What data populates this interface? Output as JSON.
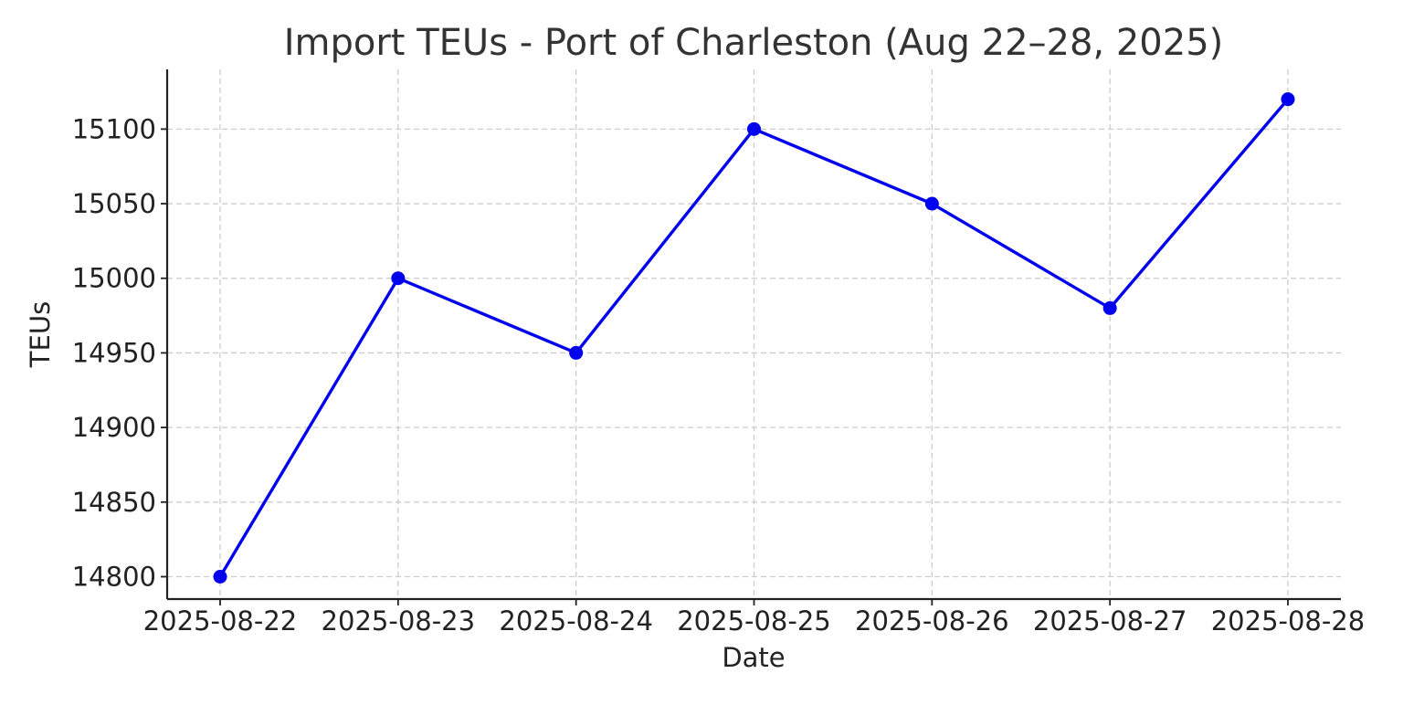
{
  "chart_data": {
    "type": "line",
    "title": "Import TEUs - Port of Charleston (Aug 22–28, 2025)",
    "xlabel": "Date",
    "ylabel": "TEUs",
    "categories": [
      "2025-08-22",
      "2025-08-23",
      "2025-08-24",
      "2025-08-25",
      "2025-08-26",
      "2025-08-27",
      "2025-08-28"
    ],
    "series": [
      {
        "values": [
          14800,
          15000,
          14950,
          15100,
          15050,
          14980,
          15120
        ],
        "color": "#0000ee"
      }
    ],
    "ylim": [
      14785,
      15140
    ],
    "yticks": [
      14800,
      14850,
      14900,
      14950,
      15000,
      15050,
      15100
    ],
    "grid": true,
    "legend": "none"
  }
}
